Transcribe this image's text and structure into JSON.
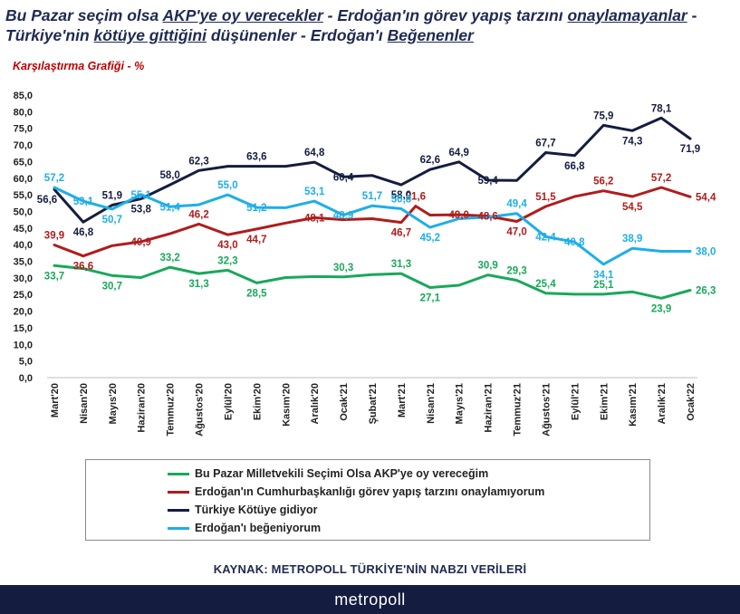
{
  "title_segments": [
    {
      "text": "Bu Pazar seçim olsa ",
      "u": false
    },
    {
      "text": "AKP'ye oy verecekler",
      "u": true
    },
    {
      "text": " - Erdoğan'ın görev yapış tarzını ",
      "u": false
    },
    {
      "text": "onaylamayanlar",
      "u": true
    },
    {
      "text": " - Türkiye'nin ",
      "u": false
    },
    {
      "text": "kötüye gittiğini",
      "u": true
    },
    {
      "text": " düşünenler - Erdoğan'ı ",
      "u": false
    },
    {
      "text": "Beğenenler",
      "u": true
    }
  ],
  "subtitle": "Karşılaştırma Grafiği - %",
  "source": "KAYNAK: METROPOLL TÜRKİYE'NİN NABZI VERİLERİ",
  "footer": {
    "logo_text": "metropoll"
  },
  "legend": [
    {
      "label": "Bu Pazar Milletvekili Seçimi Olsa AKP'ye oy vereceğim",
      "color": "#1aa85a"
    },
    {
      "label": "Erdoğan'ın Cumhurbaşkanlığı görev yapış tarzını onaylamıyorum",
      "color": "#b01c1c"
    },
    {
      "label": "Türkiye Kötüye gidiyor",
      "color": "#141d3f"
    },
    {
      "label": "Erdoğan'ı beğeniyorum",
      "color": "#1eaee8"
    }
  ],
  "chart_data": {
    "type": "line",
    "title": "Bu Pazar seçim olsa AKP'ye oy verecekler - Erdoğan'ın görev yapış tarzını onaylamayanlar - Türkiye'nin kötüye gittiğini düşünenler - Erdoğan'ı Beğenenler",
    "subtitle": "Karşılaştırma Grafiği - %",
    "ylim": [
      0,
      85
    ],
    "ytick_step": 5,
    "ytick_labels": [
      "0,0",
      "5,0",
      "10,0",
      "15,0",
      "20,0",
      "25,0",
      "30,0",
      "35,0",
      "40,0",
      "45,0",
      "50,0",
      "55,0",
      "60,0",
      "65,0",
      "70,0",
      "75,0",
      "80,0",
      "85,0"
    ],
    "grid": false,
    "legend_position": "bottom",
    "x_count": 23,
    "tick_labels": [
      "Mart'20",
      "Nisan'20",
      "Mayıs'20",
      "Haziran'20",
      "Temmuz'20",
      "Ağustos'20",
      "Eylül'20",
      "Ekim'20",
      "Kasım'20",
      "Aralık'20",
      "Ocak'21",
      "Şubat'21",
      "Mart'21",
      "Nisan'21",
      "Mayıs'21",
      "Haziran'21",
      "Temmuz'21",
      "Ağustos'21",
      "Eylül'21",
      "Ekim'21",
      "Kasım'21",
      "Aralık'21",
      "Ocak'22"
    ],
    "tick_x": [
      0,
      2,
      4,
      6,
      8,
      10,
      12,
      14,
      16,
      18,
      20,
      22,
      24,
      26,
      28,
      30,
      32,
      34,
      36,
      38,
      40,
      42,
      44
    ],
    "series": [
      {
        "name": "Bu Pazar Milletvekili Seçimi Olsa AKP'ye oy vereceğim",
        "color": "#1aa85a",
        "x": [
          0,
          2,
          4,
          6,
          8,
          10,
          12,
          14,
          16,
          18,
          20,
          22,
          24,
          26,
          28,
          30,
          32,
          34,
          36,
          38,
          40,
          42,
          44
        ],
        "values": [
          33.7,
          32.8,
          30.7,
          30.1,
          33.2,
          31.3,
          32.3,
          28.5,
          30.1,
          30.4,
          30.3,
          31.0,
          31.3,
          27.1,
          27.8,
          30.9,
          29.3,
          25.4,
          25.1,
          25.1,
          25.8,
          23.9,
          26.3
        ],
        "labels": [
          {
            "i": 0,
            "text": "33,7",
            "pos": "below"
          },
          {
            "i": 2,
            "text": "30,7",
            "pos": "below"
          },
          {
            "i": 4,
            "text": "33,2",
            "pos": "above"
          },
          {
            "i": 5,
            "text": "31,3",
            "pos": "below"
          },
          {
            "i": 6,
            "text": "32,3",
            "pos": "above"
          },
          {
            "i": 7,
            "text": "28,5",
            "pos": "below"
          },
          {
            "i": 10,
            "text": "30,3",
            "pos": "above"
          },
          {
            "i": 12,
            "text": "31,3",
            "pos": "above"
          },
          {
            "i": 13,
            "text": "27,1",
            "pos": "below"
          },
          {
            "i": 15,
            "text": "30,9",
            "pos": "above"
          },
          {
            "i": 16,
            "text": "29,3",
            "pos": "above"
          },
          {
            "i": 17,
            "text": "25,4",
            "pos": "above"
          },
          {
            "i": 19,
            "text": "25,1",
            "pos": "above"
          },
          {
            "i": 21,
            "text": "23,9",
            "pos": "below"
          },
          {
            "i": 22,
            "text": "26,3",
            "pos": "right"
          }
        ]
      },
      {
        "name": "Erdoğan'ın Cumhurbaşkanlığı görev yapış tarzını onaylamıyorum",
        "color": "#b01c1c",
        "x": [
          0,
          2,
          4,
          6,
          8,
          10,
          12,
          14,
          16,
          18,
          20,
          22,
          24,
          25,
          26,
          28,
          30,
          32,
          34,
          36,
          38,
          40,
          42,
          44
        ],
        "values": [
          39.9,
          36.6,
          39.7,
          40.9,
          43.3,
          46.2,
          43.0,
          44.7,
          46.5,
          48.1,
          47.5,
          47.8,
          46.7,
          51.6,
          48.9,
          49.0,
          48.6,
          47.0,
          51.5,
          54.5,
          56.2,
          54.5,
          57.2,
          54.4
        ],
        "labels": [
          {
            "i": 0,
            "text": "39,9",
            "pos": "above"
          },
          {
            "i": 1,
            "text": "36,6",
            "pos": "below"
          },
          {
            "i": 3,
            "text": "40,9",
            "pos": "mid"
          },
          {
            "i": 5,
            "text": "46,2",
            "pos": "above"
          },
          {
            "i": 6,
            "text": "43,0",
            "pos": "below"
          },
          {
            "i": 7,
            "text": "44,7",
            "pos": "below"
          },
          {
            "i": 9,
            "text": "48,1",
            "pos": "mid"
          },
          {
            "i": 12,
            "text": "46,7",
            "pos": "below"
          },
          {
            "i": 13,
            "text": "51,6",
            "pos": "above"
          },
          {
            "i": 15,
            "text": "49,0",
            "pos": "mid"
          },
          {
            "i": 16,
            "text": "48,6",
            "pos": "mid"
          },
          {
            "i": 17,
            "text": "47,0",
            "pos": "below"
          },
          {
            "i": 18,
            "text": "51,5",
            "pos": "above"
          },
          {
            "i": 20,
            "text": "56,2",
            "pos": "above"
          },
          {
            "i": 21,
            "text": "54,5",
            "pos": "below"
          },
          {
            "i": 22,
            "text": "57,2",
            "pos": "above"
          },
          {
            "i": 23,
            "text": "54,4",
            "pos": "right"
          }
        ]
      },
      {
        "name": "Türkiye Kötüye gidiyor",
        "color": "#141d3f",
        "x": [
          0,
          2,
          4,
          6,
          8,
          10,
          12,
          14,
          16,
          18,
          20,
          22,
          24,
          26,
          28,
          30,
          32,
          34,
          36,
          38,
          40,
          42,
          44
        ],
        "values": [
          56.6,
          46.8,
          51.9,
          53.8,
          58.0,
          62.3,
          63.6,
          63.6,
          63.6,
          64.8,
          60.4,
          60.8,
          58.0,
          62.6,
          64.9,
          59.4,
          59.3,
          67.7,
          66.8,
          75.9,
          74.3,
          78.1,
          71.9
        ],
        "labels": [
          {
            "i": 0,
            "text": "56,6",
            "pos": "belowL"
          },
          {
            "i": 1,
            "text": "46,8",
            "pos": "below"
          },
          {
            "i": 2,
            "text": "51,9",
            "pos": "above"
          },
          {
            "i": 3,
            "text": "53,8",
            "pos": "below"
          },
          {
            "i": 4,
            "text": "58,0",
            "pos": "above"
          },
          {
            "i": 5,
            "text": "62,3",
            "pos": "above"
          },
          {
            "i": 7,
            "text": "63,6",
            "pos": "above"
          },
          {
            "i": 9,
            "text": "64,8",
            "pos": "above"
          },
          {
            "i": 10,
            "text": "60,4",
            "pos": "mid"
          },
          {
            "i": 12,
            "text": "58,0",
            "pos": "below"
          },
          {
            "i": 13,
            "text": "62,6",
            "pos": "above"
          },
          {
            "i": 14,
            "text": "64,9",
            "pos": "above"
          },
          {
            "i": 15,
            "text": "59,4",
            "pos": "mid"
          },
          {
            "i": 17,
            "text": "67,7",
            "pos": "above"
          },
          {
            "i": 18,
            "text": "66,8",
            "pos": "below"
          },
          {
            "i": 19,
            "text": "75,9",
            "pos": "above"
          },
          {
            "i": 20,
            "text": "74,3",
            "pos": "below"
          },
          {
            "i": 21,
            "text": "78,1",
            "pos": "above"
          },
          {
            "i": 22,
            "text": "71,9",
            "pos": "below"
          }
        ]
      },
      {
        "name": "Erdoğan'ı beğeniyorum",
        "color": "#1eaee8",
        "x": [
          0,
          2,
          4,
          6,
          8,
          10,
          12,
          14,
          16,
          18,
          20,
          22,
          24,
          26,
          28,
          30,
          32,
          34,
          36,
          38,
          40,
          42,
          44
        ],
        "values": [
          57.2,
          53.1,
          50.7,
          55.1,
          51.4,
          52.0,
          55.0,
          51.2,
          51.1,
          53.1,
          48.9,
          51.7,
          50.8,
          45.2,
          47.8,
          48.3,
          49.4,
          42.4,
          40.8,
          34.1,
          38.9,
          38.0,
          38.0
        ],
        "labels": [
          {
            "i": 0,
            "text": "57,2",
            "pos": "above"
          },
          {
            "i": 1,
            "text": "53,1",
            "pos": "mid"
          },
          {
            "i": 2,
            "text": "50,7",
            "pos": "below"
          },
          {
            "i": 3,
            "text": "55,1",
            "pos": "mid"
          },
          {
            "i": 4,
            "text": "51,4",
            "pos": "mid"
          },
          {
            "i": 6,
            "text": "55,0",
            "pos": "above"
          },
          {
            "i": 7,
            "text": "51,2",
            "pos": "mid"
          },
          {
            "i": 9,
            "text": "53,1",
            "pos": "above"
          },
          {
            "i": 10,
            "text": "48,9",
            "pos": "mid"
          },
          {
            "i": 11,
            "text": "51,7",
            "pos": "above"
          },
          {
            "i": 12,
            "text": "50,8",
            "pos": "above"
          },
          {
            "i": 13,
            "text": "45,2",
            "pos": "below"
          },
          {
            "i": 16,
            "text": "49,4",
            "pos": "above"
          },
          {
            "i": 17,
            "text": "42,4",
            "pos": "mid"
          },
          {
            "i": 18,
            "text": "40,8",
            "pos": "mid"
          },
          {
            "i": 19,
            "text": "34,1",
            "pos": "below"
          },
          {
            "i": 20,
            "text": "38,9",
            "pos": "above"
          },
          {
            "i": 22,
            "text": "38,0",
            "pos": "right"
          }
        ]
      }
    ]
  }
}
